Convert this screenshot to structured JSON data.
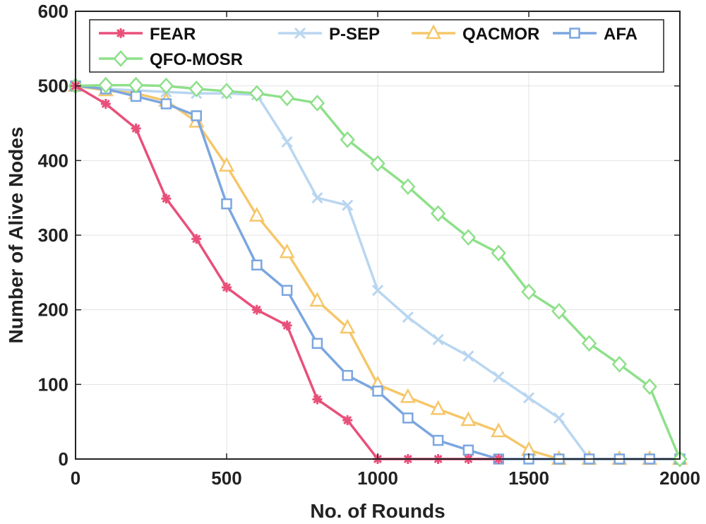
{
  "chart_data": {
    "type": "line",
    "title": "",
    "xlabel": "No. of Rounds",
    "ylabel": "Number of Alive Nodes",
    "xlim": [
      0,
      2000
    ],
    "ylim": [
      0,
      600
    ],
    "xticks": [
      0,
      500,
      1000,
      1500,
      2000
    ],
    "yticks": [
      0,
      100,
      200,
      300,
      400,
      500,
      600
    ],
    "grid": true,
    "legend_position": "top",
    "series": [
      {
        "name": "FEAR",
        "color": "#E8507A",
        "marker": "asterisk",
        "x": [
          0,
          100,
          200,
          300,
          400,
          500,
          600,
          700,
          800,
          900,
          1000,
          1100,
          1200,
          1300,
          1400
        ],
        "y": [
          500,
          476,
          443,
          349,
          295,
          230,
          200,
          179,
          80,
          52,
          0,
          0,
          0,
          0,
          0
        ]
      },
      {
        "name": "P-SEP",
        "color": "#B9D6F0",
        "marker": "x",
        "x": [
          0,
          100,
          200,
          300,
          400,
          500,
          600,
          700,
          800,
          900,
          1000,
          1100,
          1200,
          1300,
          1400,
          1500,
          1600,
          1700,
          1800,
          1900,
          2000
        ],
        "y": [
          500,
          496,
          494,
          492,
          490,
          490,
          488,
          425,
          350,
          340,
          226,
          190,
          160,
          138,
          110,
          82,
          55,
          0,
          0,
          0,
          0
        ]
      },
      {
        "name": "QACMOR",
        "color": "#F5C76A",
        "marker": "triangle",
        "x": [
          0,
          100,
          200,
          300,
          400,
          500,
          600,
          700,
          800,
          900,
          1000,
          1100,
          1200,
          1300,
          1400,
          1500,
          1600,
          1700,
          1800,
          1900,
          2000
        ],
        "y": [
          500,
          494,
          490,
          480,
          452,
          393,
          326,
          277,
          212,
          176,
          100,
          83,
          67,
          52,
          37,
          12,
          0,
          0,
          0,
          0,
          0
        ]
      },
      {
        "name": "AFA",
        "color": "#7BA6E0",
        "marker": "square",
        "x": [
          0,
          100,
          200,
          300,
          400,
          500,
          600,
          700,
          800,
          900,
          1000,
          1100,
          1200,
          1300,
          1400,
          1500,
          1600,
          1700,
          1800,
          1900,
          2000
        ],
        "y": [
          500,
          496,
          486,
          476,
          460,
          342,
          260,
          226,
          155,
          112,
          91,
          55,
          25,
          12,
          0,
          0,
          0,
          0,
          0,
          0,
          0
        ]
      },
      {
        "name": "QFO-MOSR",
        "color": "#8EE08A",
        "marker": "diamond",
        "x": [
          0,
          100,
          200,
          300,
          400,
          500,
          600,
          700,
          800,
          900,
          1000,
          1100,
          1200,
          1300,
          1400,
          1500,
          1600,
          1700,
          1800,
          1900,
          2000
        ],
        "y": [
          500,
          501,
          501,
          500,
          496,
          493,
          490,
          484,
          477,
          428,
          396,
          365,
          329,
          297,
          276,
          224,
          198,
          155,
          127,
          97,
          0
        ]
      }
    ]
  }
}
